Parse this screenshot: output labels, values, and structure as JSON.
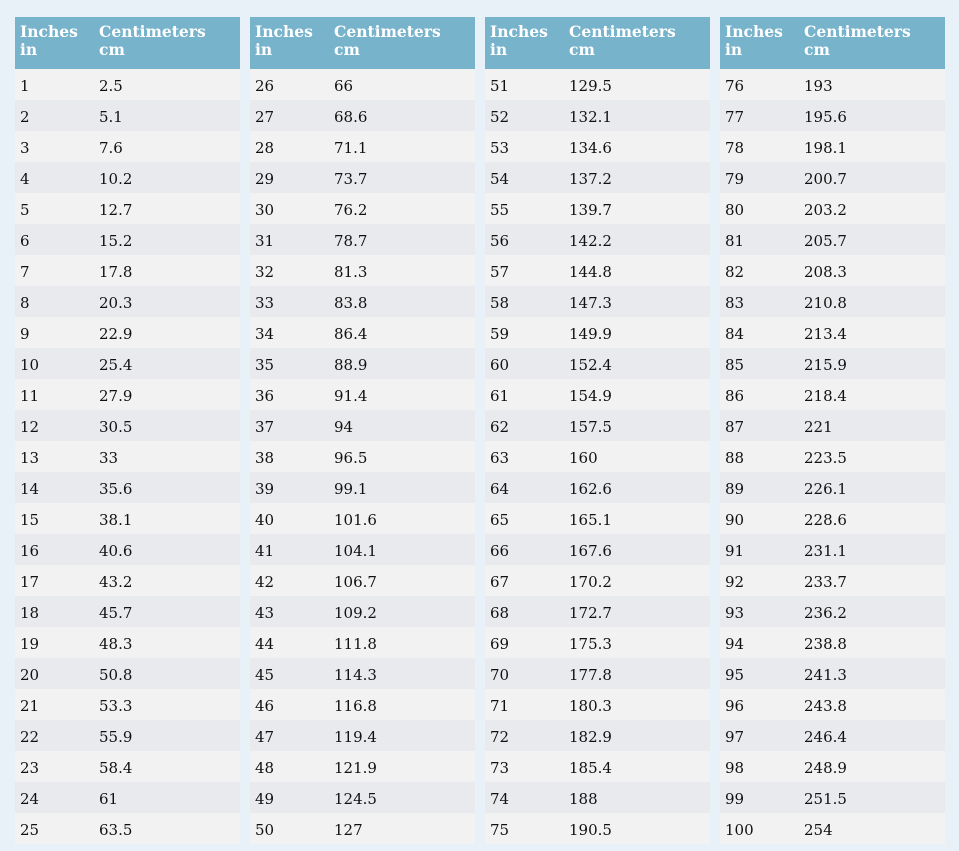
{
  "colors": {
    "header_bg": "#78b3cc",
    "row_light": "#f2f2f2",
    "row_dark": "#e9eaed",
    "page_bg": "#e8f1f8"
  },
  "header": {
    "col1_line1": "Inches",
    "col1_line2": "in",
    "col2_line1": "Centimeters",
    "col2_line2": "cm"
  },
  "tables": [
    {
      "rows": [
        [
          "1",
          "2.5"
        ],
        [
          "2",
          "5.1"
        ],
        [
          "3",
          "7.6"
        ],
        [
          "4",
          "10.2"
        ],
        [
          "5",
          "12.7"
        ],
        [
          "6",
          "15.2"
        ],
        [
          "7",
          "17.8"
        ],
        [
          "8",
          "20.3"
        ],
        [
          "9",
          "22.9"
        ],
        [
          "10",
          "25.4"
        ],
        [
          "11",
          "27.9"
        ],
        [
          "12",
          "30.5"
        ],
        [
          "13",
          "33"
        ],
        [
          "14",
          "35.6"
        ],
        [
          "15",
          "38.1"
        ],
        [
          "16",
          "40.6"
        ],
        [
          "17",
          "43.2"
        ],
        [
          "18",
          "45.7"
        ],
        [
          "19",
          "48.3"
        ],
        [
          "20",
          "50.8"
        ],
        [
          "21",
          "53.3"
        ],
        [
          "22",
          "55.9"
        ],
        [
          "23",
          "58.4"
        ],
        [
          "24",
          "61"
        ],
        [
          "25",
          "63.5"
        ]
      ]
    },
    {
      "rows": [
        [
          "26",
          "66"
        ],
        [
          "27",
          "68.6"
        ],
        [
          "28",
          "71.1"
        ],
        [
          "29",
          "73.7"
        ],
        [
          "30",
          "76.2"
        ],
        [
          "31",
          "78.7"
        ],
        [
          "32",
          "81.3"
        ],
        [
          "33",
          "83.8"
        ],
        [
          "34",
          "86.4"
        ],
        [
          "35",
          "88.9"
        ],
        [
          "36",
          "91.4"
        ],
        [
          "37",
          "94"
        ],
        [
          "38",
          "96.5"
        ],
        [
          "39",
          "99.1"
        ],
        [
          "40",
          "101.6"
        ],
        [
          "41",
          "104.1"
        ],
        [
          "42",
          "106.7"
        ],
        [
          "43",
          "109.2"
        ],
        [
          "44",
          "111.8"
        ],
        [
          "45",
          "114.3"
        ],
        [
          "46",
          "116.8"
        ],
        [
          "47",
          "119.4"
        ],
        [
          "48",
          "121.9"
        ],
        [
          "49",
          "124.5"
        ],
        [
          "50",
          "127"
        ]
      ]
    },
    {
      "rows": [
        [
          "51",
          "129.5"
        ],
        [
          "52",
          "132.1"
        ],
        [
          "53",
          "134.6"
        ],
        [
          "54",
          "137.2"
        ],
        [
          "55",
          "139.7"
        ],
        [
          "56",
          "142.2"
        ],
        [
          "57",
          "144.8"
        ],
        [
          "58",
          "147.3"
        ],
        [
          "59",
          "149.9"
        ],
        [
          "60",
          "152.4"
        ],
        [
          "61",
          "154.9"
        ],
        [
          "62",
          "157.5"
        ],
        [
          "63",
          "160"
        ],
        [
          "64",
          "162.6"
        ],
        [
          "65",
          "165.1"
        ],
        [
          "66",
          "167.6"
        ],
        [
          "67",
          "170.2"
        ],
        [
          "68",
          "172.7"
        ],
        [
          "69",
          "175.3"
        ],
        [
          "70",
          "177.8"
        ],
        [
          "71",
          "180.3"
        ],
        [
          "72",
          "182.9"
        ],
        [
          "73",
          "185.4"
        ],
        [
          "74",
          "188"
        ],
        [
          "75",
          "190.5"
        ]
      ]
    },
    {
      "rows": [
        [
          "76",
          "193"
        ],
        [
          "77",
          "195.6"
        ],
        [
          "78",
          "198.1"
        ],
        [
          "79",
          "200.7"
        ],
        [
          "80",
          "203.2"
        ],
        [
          "81",
          "205.7"
        ],
        [
          "82",
          "208.3"
        ],
        [
          "83",
          "210.8"
        ],
        [
          "84",
          "213.4"
        ],
        [
          "85",
          "215.9"
        ],
        [
          "86",
          "218.4"
        ],
        [
          "87",
          "221"
        ],
        [
          "88",
          "223.5"
        ],
        [
          "89",
          "226.1"
        ],
        [
          "90",
          "228.6"
        ],
        [
          "91",
          "231.1"
        ],
        [
          "92",
          "233.7"
        ],
        [
          "93",
          "236.2"
        ],
        [
          "94",
          "238.8"
        ],
        [
          "95",
          "241.3"
        ],
        [
          "96",
          "243.8"
        ],
        [
          "97",
          "246.4"
        ],
        [
          "98",
          "248.9"
        ],
        [
          "99",
          "251.5"
        ],
        [
          "100",
          "254"
        ]
      ]
    }
  ]
}
